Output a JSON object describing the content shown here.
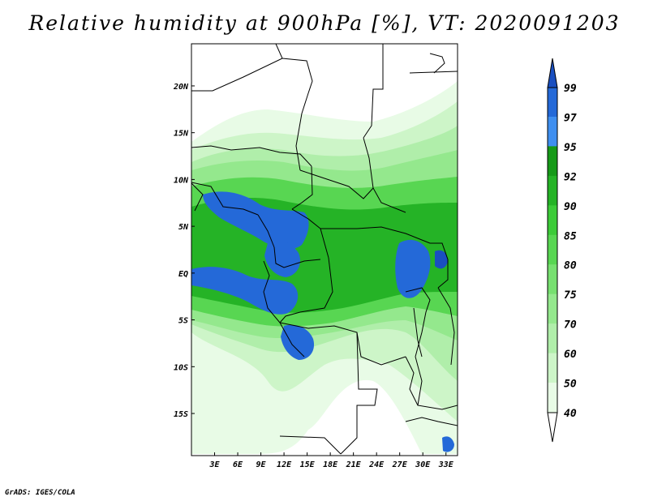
{
  "title": "Relative humidity at 900hPa [%], VT: 2020091203",
  "credit": "GrADS: IGES/COLA",
  "colors": {
    "rh_40": "#e8fbe6",
    "rh_50": "#cdf5c8",
    "rh_60": "#b0eeaa",
    "rh_70": "#94e88d",
    "rh_75": "#77e070",
    "rh_80": "#58d652",
    "rh_85": "#3ccb38",
    "rh_90": "#25b326",
    "rh_92": "#169a18",
    "rh_95": "#3f8ff0",
    "rh_97": "#2469d8",
    "rh_99": "#1a4fc0",
    "border": "#000000"
  },
  "map": {
    "lon_range": [
      0,
      34.5
    ],
    "lat_range": [
      -19.5,
      24.5
    ],
    "x_ticks": [
      {
        "lon": 3,
        "label": "3E"
      },
      {
        "lon": 6,
        "label": "6E"
      },
      {
        "lon": 9,
        "label": "9E"
      },
      {
        "lon": 12,
        "label": "12E"
      },
      {
        "lon": 15,
        "label": "15E"
      },
      {
        "lon": 18,
        "label": "18E"
      },
      {
        "lon": 21,
        "label": "21E"
      },
      {
        "lon": 24,
        "label": "24E"
      },
      {
        "lon": 27,
        "label": "27E"
      },
      {
        "lon": 30,
        "label": "30E"
      },
      {
        "lon": 33,
        "label": "33E"
      }
    ],
    "y_ticks": [
      {
        "lat": 20,
        "label": "20N"
      },
      {
        "lat": 15,
        "label": "15N"
      },
      {
        "lat": 10,
        "label": "10N"
      },
      {
        "lat": 5,
        "label": "5N"
      },
      {
        "lat": 0,
        "label": "EQ"
      },
      {
        "lat": -5,
        "label": "5S"
      },
      {
        "lat": -10,
        "label": "10S"
      },
      {
        "lat": -15,
        "label": "15S"
      }
    ]
  },
  "colorbar": {
    "levels": [
      "40",
      "50",
      "60",
      "70",
      "75",
      "80",
      "85",
      "90",
      "92",
      "95",
      "97",
      "99"
    ],
    "colors": [
      "#ffffff",
      "#e8fbe6",
      "#cdf5c8",
      "#b0eeaa",
      "#94e88d",
      "#77e070",
      "#58d652",
      "#3ccb38",
      "#25b326",
      "#169a18",
      "#3f8ff0",
      "#2469d8",
      "#1a4fc0"
    ]
  }
}
